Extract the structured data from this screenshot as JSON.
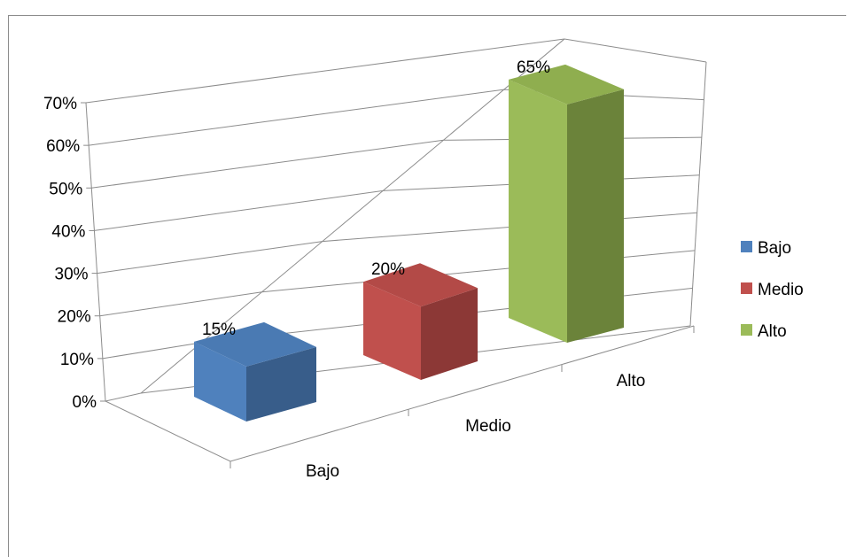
{
  "chart_data": {
    "type": "bar",
    "categories": [
      "Bajo",
      "Medio",
      "Alto"
    ],
    "values": [
      0.15,
      0.2,
      0.65
    ],
    "data_labels": [
      "15%",
      "20%",
      "65%"
    ],
    "ylim": [
      0,
      0.7
    ],
    "y_ticks": [
      "0%",
      "10%",
      "20%",
      "30%",
      "40%",
      "50%",
      "60%",
      "70%"
    ],
    "grid": true,
    "legend_position": "right",
    "legend": [
      "Bajo",
      "Medio",
      "Alto"
    ],
    "colors": {
      "Bajo": {
        "front": "#4f81bd",
        "side": "#385d8a",
        "top": "#4a7ab3"
      },
      "Medio": {
        "front": "#c0504d",
        "side": "#8c3836",
        "top": "#b34a47"
      },
      "Alto": {
        "front": "#9bbb59",
        "side": "#6b833a",
        "top": "#8fae4f"
      }
    }
  }
}
